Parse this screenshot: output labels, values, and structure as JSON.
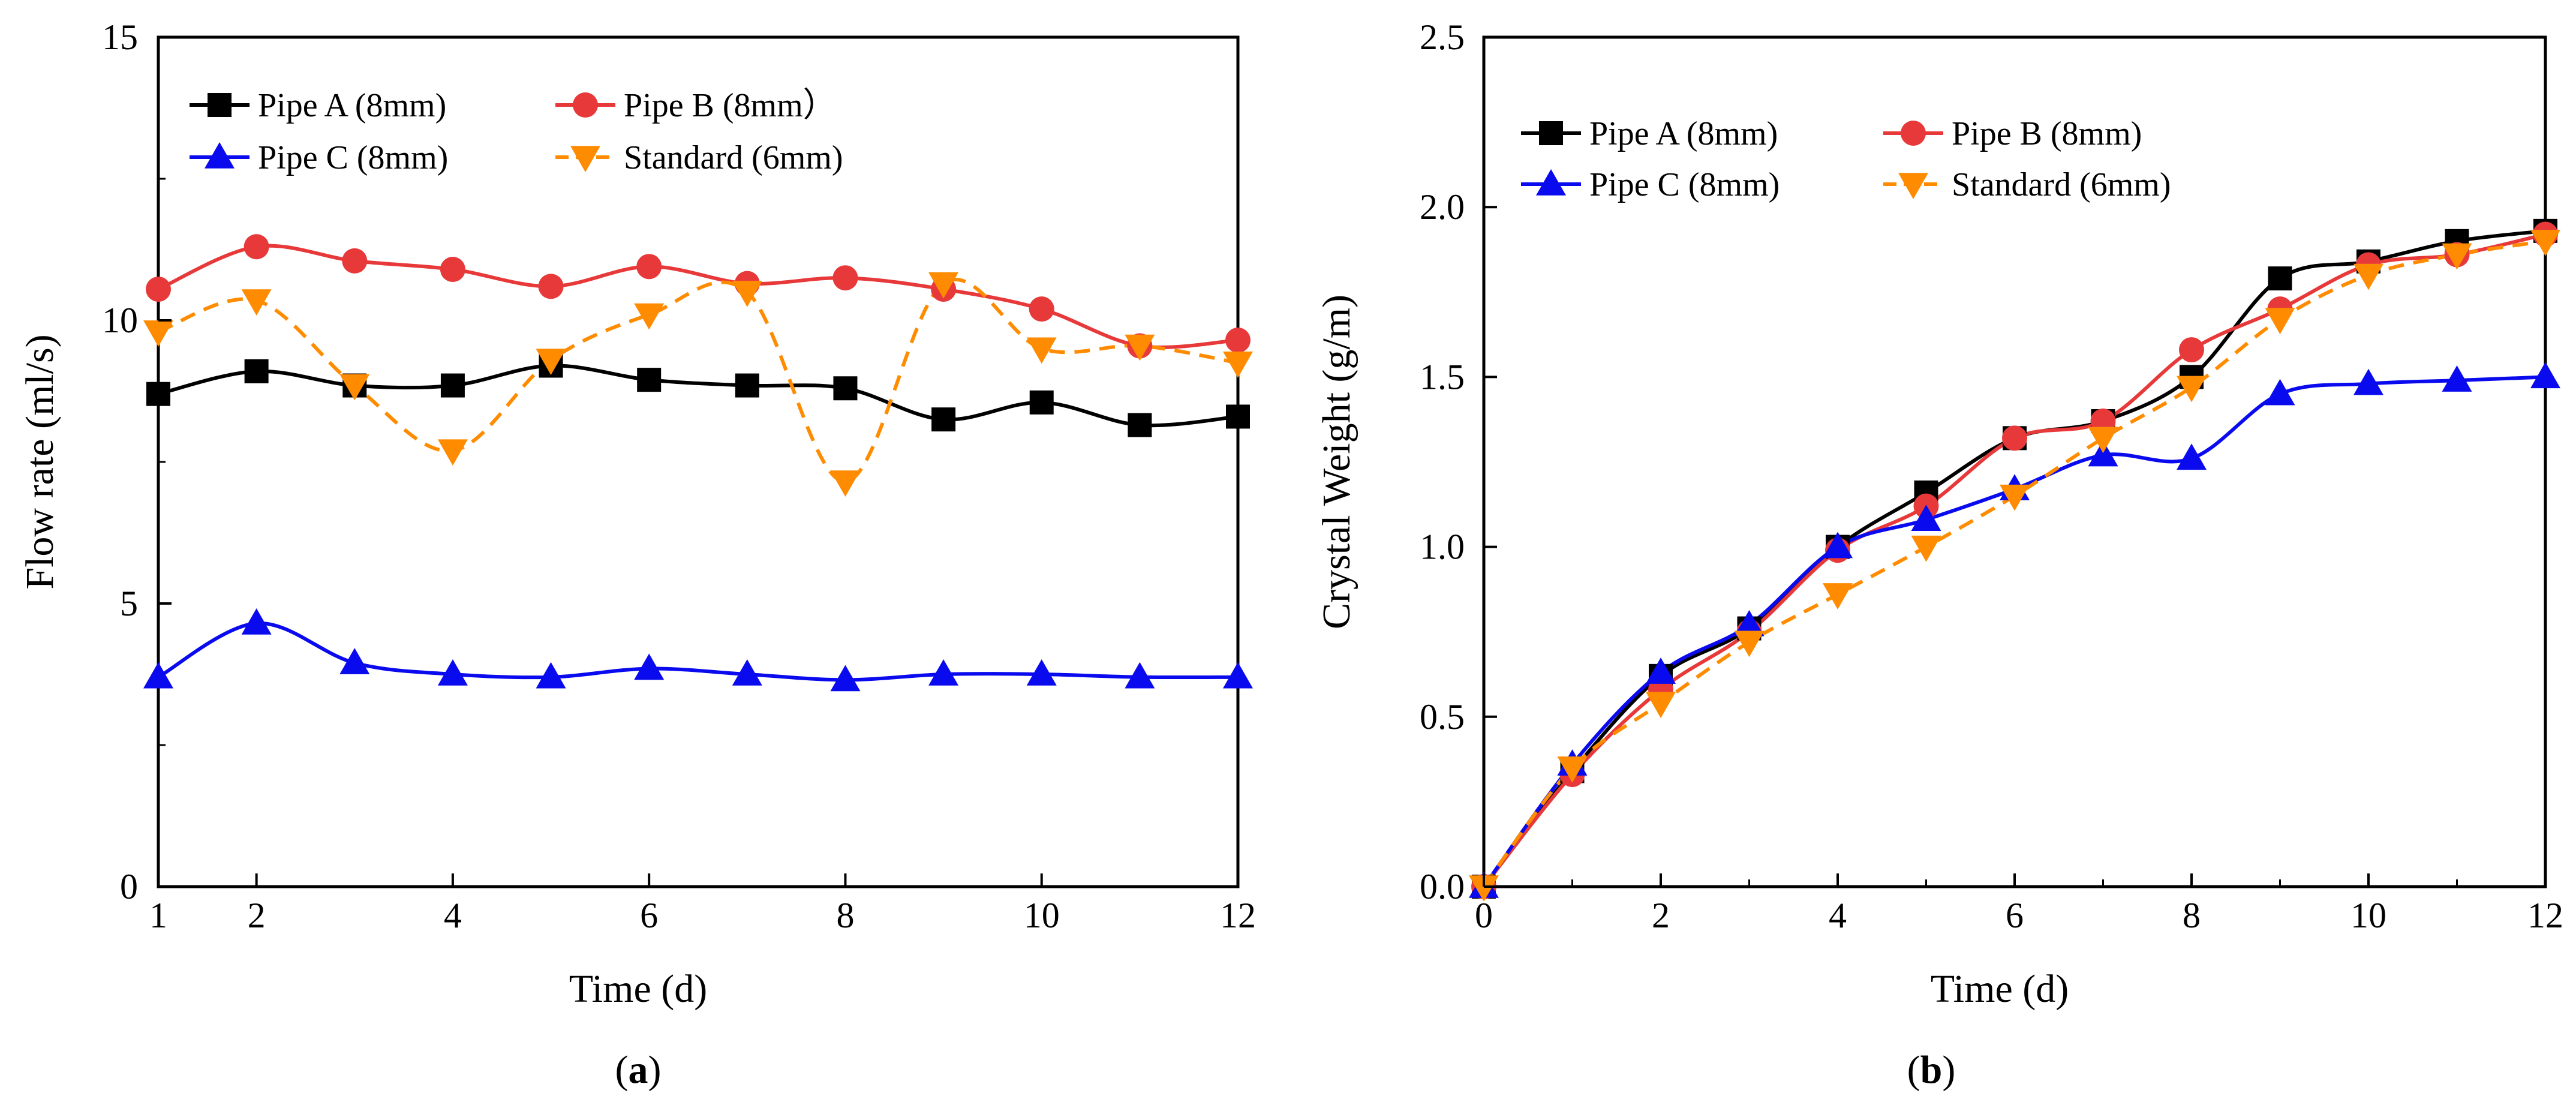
{
  "chart_data": [
    {
      "type": "line",
      "panel_label_prefix": "(",
      "panel_label_letter": "a",
      "panel_label_suffix": ")",
      "xlabel": "Time (d)",
      "ylabel": "Flow rate (ml/s)",
      "xlim": [
        1,
        12
      ],
      "ylim": [
        0,
        15
      ],
      "xticks": [
        1,
        2,
        4,
        6,
        8,
        10,
        12
      ],
      "xtick_labels": [
        "1",
        "2",
        "4",
        "6",
        "8",
        "10",
        "12"
      ],
      "yticks": [
        0,
        5,
        10,
        15
      ],
      "ytick_labels": [
        "0",
        "5",
        "10",
        "15"
      ],
      "x": [
        1,
        2,
        3,
        4,
        5,
        6,
        7,
        8,
        9,
        10,
        11,
        12
      ],
      "legend_position": "top-left",
      "series": [
        {
          "name": "Pipe A (8mm)",
          "color": "#000000",
          "marker": "square",
          "dashed": false,
          "values": [
            8.7,
            9.1,
            8.85,
            8.85,
            9.2,
            8.95,
            8.85,
            8.8,
            8.25,
            8.55,
            8.15,
            8.3
          ]
        },
        {
          "name": "Pipe B (8mm）",
          "color": "#e8393a",
          "marker": "circle",
          "dashed": false,
          "values": [
            10.55,
            11.3,
            11.05,
            10.9,
            10.6,
            10.95,
            10.65,
            10.75,
            10.55,
            10.2,
            9.55,
            9.65
          ]
        },
        {
          "name": "Pipe C (8mm)",
          "color": "#0a0aee",
          "marker": "triangle-up",
          "dashed": false,
          "values": [
            3.7,
            4.65,
            3.95,
            3.75,
            3.7,
            3.85,
            3.75,
            3.65,
            3.75,
            3.75,
            3.7,
            3.7
          ]
        },
        {
          "name": "Standard (6mm)",
          "color": "#ff8c00",
          "marker": "triangle-down",
          "dashed": true,
          "values": [
            9.8,
            10.35,
            8.85,
            7.7,
            9.3,
            10.1,
            10.5,
            7.15,
            10.65,
            9.5,
            9.55,
            9.25
          ]
        }
      ]
    },
    {
      "type": "line",
      "panel_label_prefix": "(",
      "panel_label_letter": "b",
      "panel_label_suffix": ")",
      "xlabel": "Time (d)",
      "ylabel": "Crystal Weight (g/m)",
      "xlim": [
        0,
        12
      ],
      "ylim": [
        0,
        2.5
      ],
      "xticks": [
        0,
        2,
        4,
        6,
        8,
        10,
        12
      ],
      "xtick_labels": [
        "0",
        "2",
        "4",
        "6",
        "8",
        "10",
        "12"
      ],
      "yticks": [
        0,
        0.5,
        1.0,
        1.5,
        2.0,
        2.5
      ],
      "ytick_labels": [
        "0.0",
        "0.5",
        "1.0",
        "1.5",
        "2.0",
        "2.5"
      ],
      "x": [
        0,
        1,
        2,
        3,
        4,
        5,
        6,
        7,
        8,
        9,
        10,
        11,
        12
      ],
      "legend_position": "top-left",
      "series": [
        {
          "name": "Pipe A (8mm)",
          "color": "#000000",
          "marker": "square",
          "dashed": false,
          "values": [
            0.0,
            0.34,
            0.62,
            0.76,
            1.0,
            1.16,
            1.32,
            1.37,
            1.5,
            1.79,
            1.84,
            1.9,
            1.93
          ]
        },
        {
          "name": "Pipe B (8mm)",
          "color": "#e8393a",
          "marker": "circle",
          "dashed": false,
          "values": [
            0.0,
            0.33,
            0.58,
            0.75,
            0.99,
            1.12,
            1.32,
            1.37,
            1.58,
            1.7,
            1.83,
            1.86,
            1.92
          ]
        },
        {
          "name": "Pipe C (8mm)",
          "color": "#0a0aee",
          "marker": "triangle-up",
          "dashed": false,
          "values": [
            0.0,
            0.36,
            0.63,
            0.77,
            1.0,
            1.08,
            1.17,
            1.27,
            1.26,
            1.45,
            1.48,
            1.49,
            1.5
          ]
        },
        {
          "name": "Standard (6mm)",
          "color": "#ff8c00",
          "marker": "triangle-down",
          "dashed": true,
          "values": [
            0.0,
            0.35,
            0.54,
            0.72,
            0.86,
            1.0,
            1.15,
            1.32,
            1.47,
            1.67,
            1.8,
            1.86,
            1.9
          ]
        }
      ]
    }
  ]
}
